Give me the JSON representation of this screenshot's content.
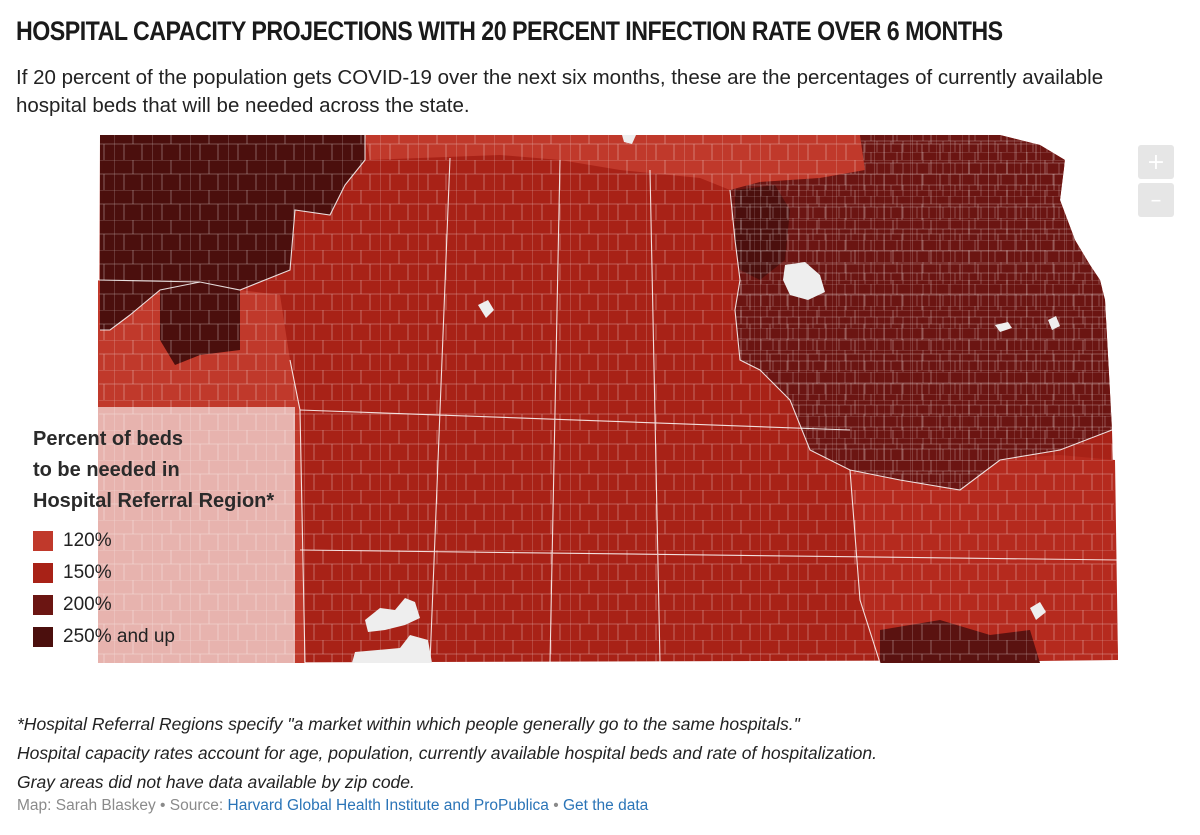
{
  "header": {
    "title": "HOSPITAL CAPACITY PROJECTIONS WITH 20 PERCENT INFECTION RATE OVER 6 MONTHS",
    "subtitle": "If 20 percent of the population gets COVID-19 over the next six months, these are the percentages of currently available hospital beds that will be needed across the state."
  },
  "map": {
    "region": "Kansas",
    "zoom_in_label": "+",
    "zoom_out_label": "–",
    "colors": {
      "c120": "#c0392b",
      "c150": "#a82217",
      "c200": "#6b1512",
      "c250": "#4b0f0d",
      "no_data": "#eeeeee",
      "border": "#ffffff"
    }
  },
  "legend": {
    "title_lines": [
      "Percent of beds",
      "to be needed in",
      "Hospital Referral Region*"
    ],
    "items": [
      {
        "label": "120%",
        "color": "#c0392b"
      },
      {
        "label": "150%",
        "color": "#a82217"
      },
      {
        "label": "200%",
        "color": "#6b1512"
      },
      {
        "label": "250% and up",
        "color": "#4b0f0d"
      }
    ]
  },
  "footnote": {
    "lines": [
      "*Hospital Referral Regions specify \"a market within which people generally go to the same hospitals.\"",
      "Hospital capacity rates account for age, population, currently available hospital beds and rate of hospitalization.",
      "Gray areas did not have data available by zip code."
    ]
  },
  "credit": {
    "map_by": "Map: Sarah Blaskey",
    "separator": "•",
    "source_label": "Source:",
    "source_link": "Harvard Global Health Institute and ProPublica",
    "data_link": "Get the data"
  }
}
